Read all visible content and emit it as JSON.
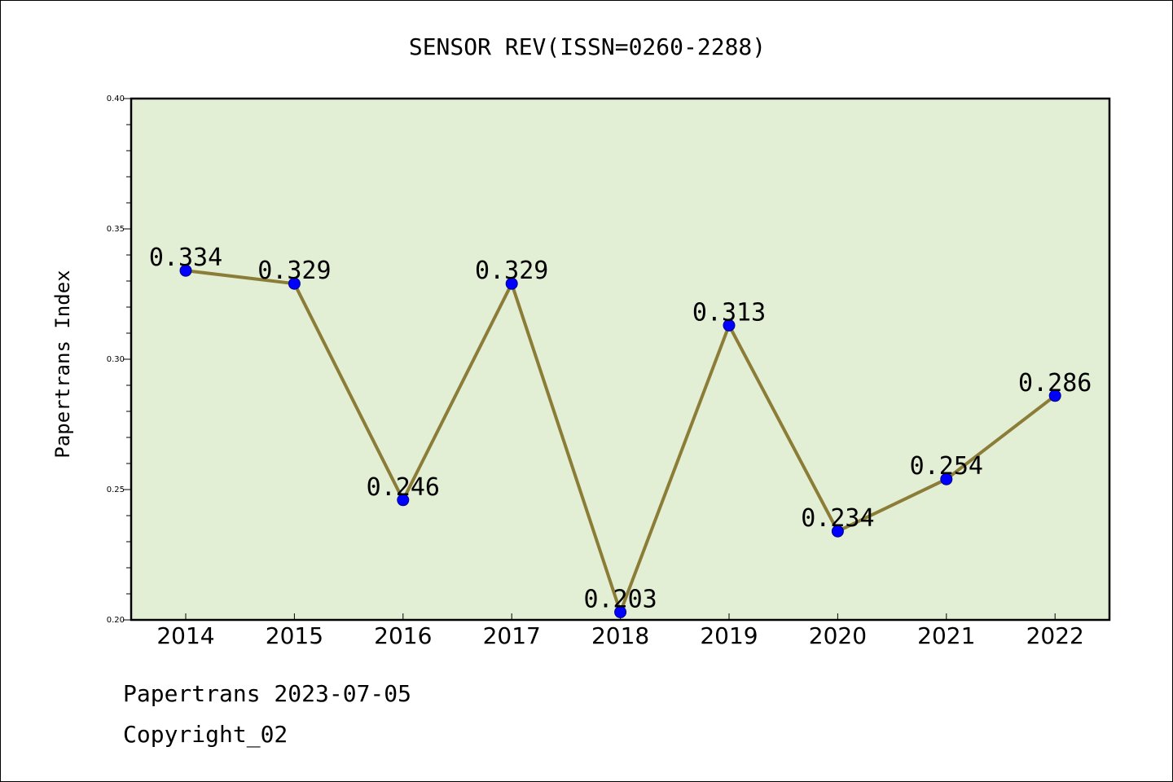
{
  "chart_data": {
    "type": "line",
    "title": "SENSOR REV(ISSN=0260-2288)",
    "xlabel": "",
    "ylabel": "Papertrans Index",
    "categories": [
      "2014",
      "2015",
      "2016",
      "2017",
      "2018",
      "2019",
      "2020",
      "2021",
      "2022"
    ],
    "values": [
      0.334,
      0.329,
      0.246,
      0.329,
      0.203,
      0.313,
      0.234,
      0.254,
      0.286
    ],
    "data_labels": [
      "0.334",
      "0.329",
      "0.246",
      "0.329",
      "0.203",
      "0.313",
      "0.234",
      "0.254",
      "0.286"
    ],
    "ylim": [
      0.2,
      0.4
    ],
    "yticks": [
      0.2,
      0.25,
      0.3,
      0.35,
      0.4
    ],
    "ytick_labels": [
      "0.20",
      "0.25",
      "0.30",
      "0.35",
      "0.40"
    ],
    "grid": false,
    "legend": "none",
    "colors": {
      "plot_background": "#e2efd4",
      "line": "#8b7d37",
      "marker": "#0000ff",
      "marker_edge": "#00008b",
      "axes": "#000000"
    }
  },
  "footer": {
    "date_line": "Papertrans 2023-07-05",
    "copyright": "Copyright_02"
  }
}
